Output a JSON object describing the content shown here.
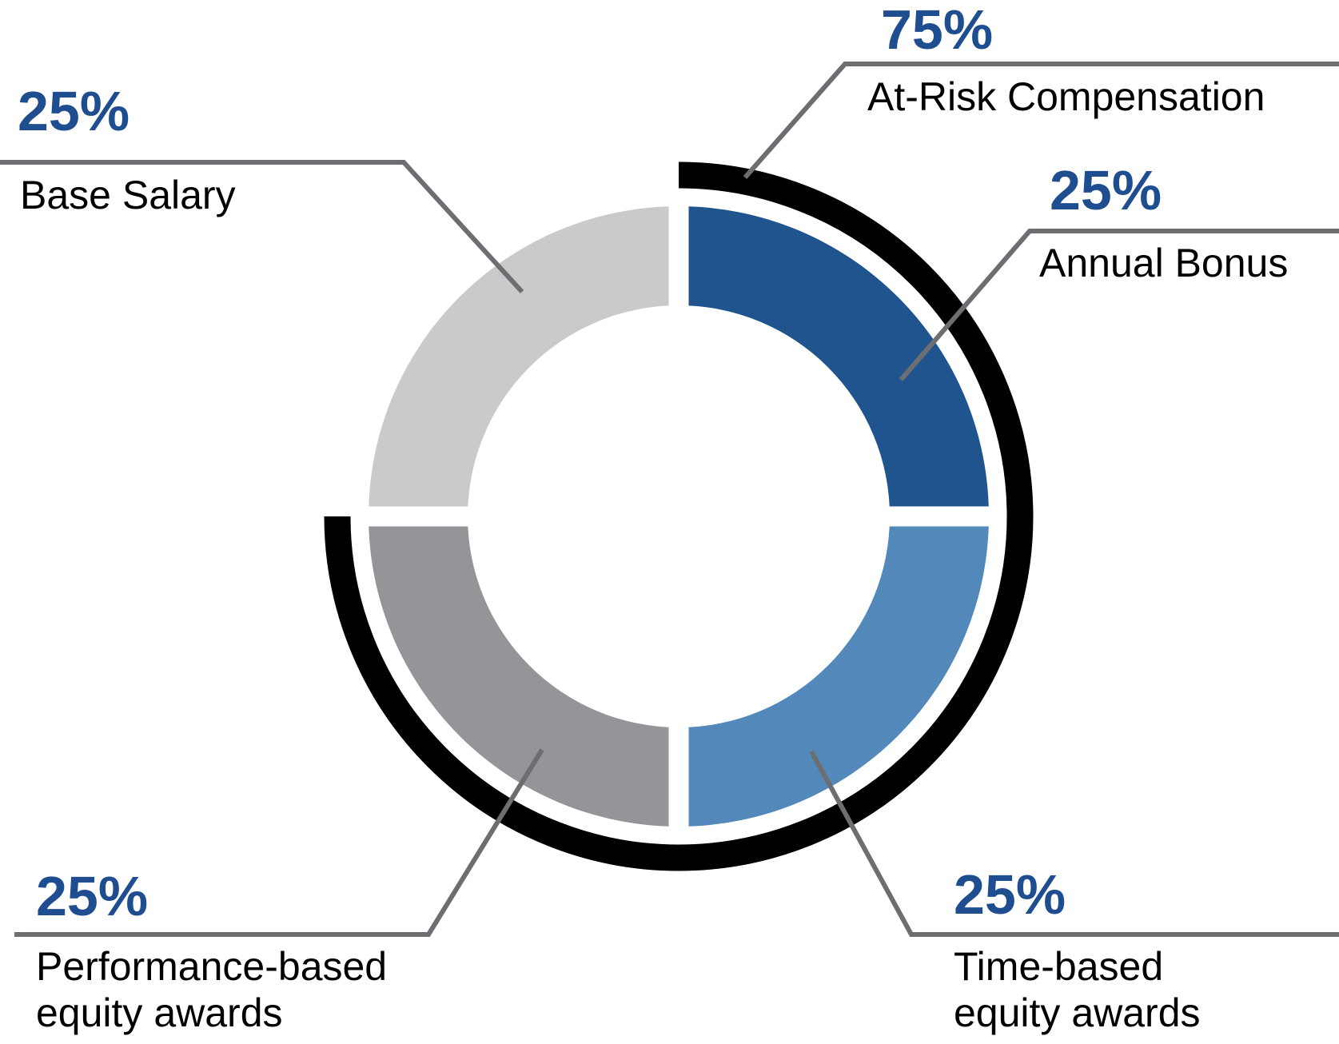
{
  "chart_data": {
    "type": "pie",
    "subtype": "donut",
    "title": "",
    "legend_position": "callouts",
    "segments": [
      {
        "id": "annual-bonus",
        "pct": "25%",
        "value": 25,
        "label_lines": [
          "Annual Bonus"
        ],
        "color": "#20548F"
      },
      {
        "id": "time-based",
        "pct": "25%",
        "value": 25,
        "label_lines": [
          "Time-based",
          "equity awards"
        ],
        "color": "#5389BA"
      },
      {
        "id": "performance-based",
        "pct": "25%",
        "value": 25,
        "label_lines": [
          "Performance-based",
          "equity awards"
        ],
        "color": "#939598"
      },
      {
        "id": "base-salary",
        "pct": "25%",
        "value": 25,
        "label_lines": [
          "Base Salary"
        ],
        "color": "#C8CACC"
      }
    ],
    "overlay_arc": {
      "id": "at-risk",
      "pct": "75%",
      "value": 75,
      "label_lines": [
        "At-Risk Compensation"
      ],
      "color": "#000000"
    }
  },
  "styles": {
    "percent_color": "#1F4E90",
    "label_color": "#000000",
    "leader_color": "#6D6E71",
    "background": "#FFFFFF"
  }
}
